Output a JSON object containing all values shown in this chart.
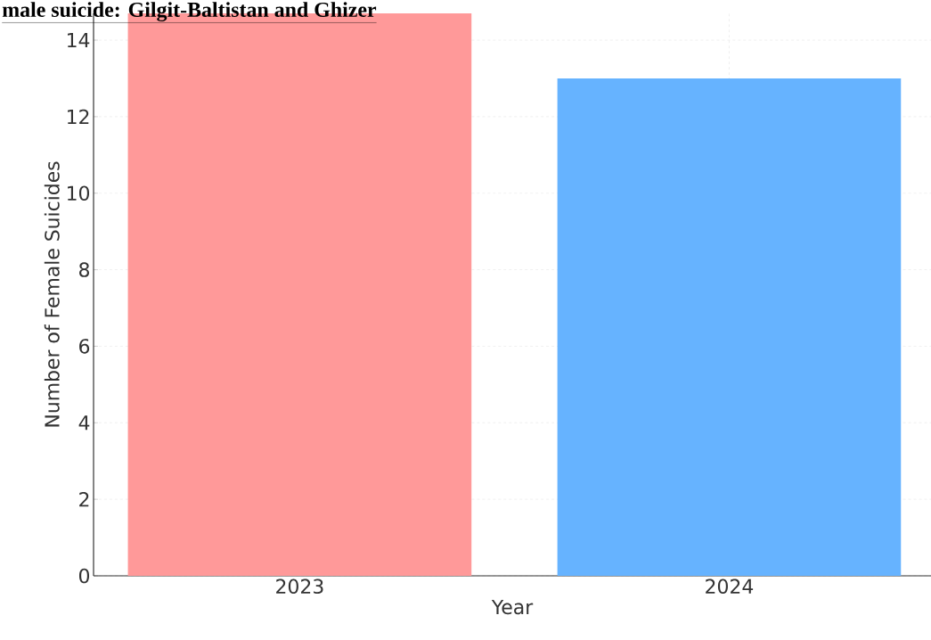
{
  "chart_data": {
    "type": "bar",
    "title": "male suicide: Gilgit-Baltistan and Ghizer",
    "xlabel": "Year",
    "ylabel": "Number of Female Suicides",
    "categories": [
      "2023",
      "2024"
    ],
    "values": [
      14.7,
      13
    ],
    "colors": [
      "#ff9999",
      "#66b3ff"
    ],
    "ylim": [
      0,
      14.7
    ],
    "yticks": [
      0,
      2,
      4,
      6,
      8,
      10,
      12,
      14
    ],
    "grid": true
  }
}
